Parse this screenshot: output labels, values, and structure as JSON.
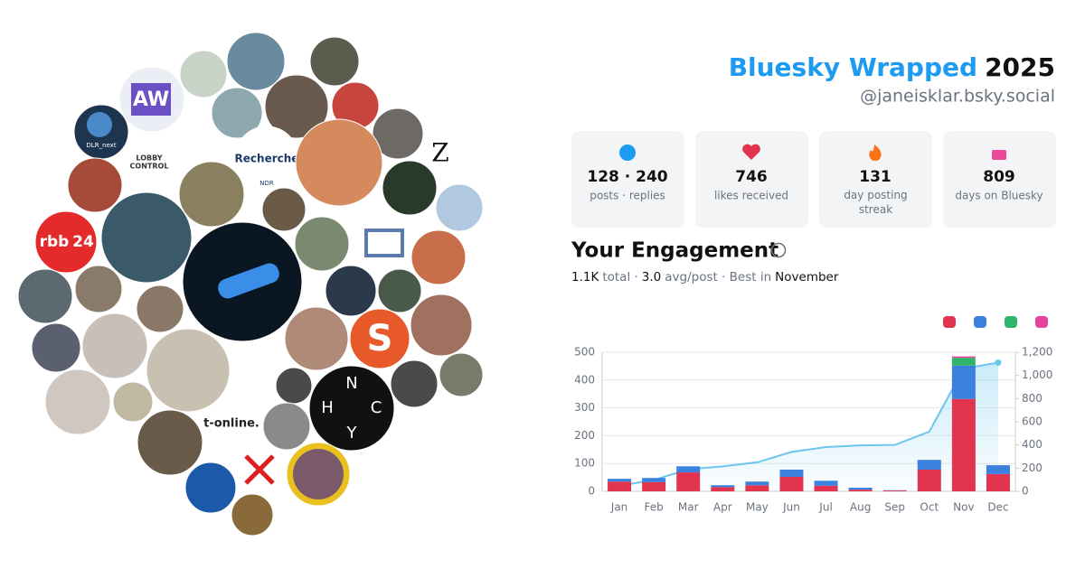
{
  "header": {
    "title": "Bluesky Wrapped",
    "year": "2025",
    "handle": "@janeisklar.bsky.social"
  },
  "avatars": [
    "AW",
    "DLR_next",
    "LOBBY",
    "CONTROL",
    "Recherche",
    "NDR",
    "Z",
    "rbb",
    "24",
    "S",
    "N",
    "H",
    "C",
    "Y",
    "t-online."
  ],
  "stats": [
    {
      "value": "128 · 240",
      "label": "posts · replies"
    },
    {
      "value": 746,
      "label": "likes received"
    },
    {
      "value": 131,
      "label": "day posting streak"
    },
    {
      "value": 809,
      "label": "days on Bluesky"
    }
  ],
  "engagement": {
    "title": "Your Engagement",
    "total": "1.1K",
    "total_label": "total ·",
    "avg": "3.0",
    "avg_label": "avg/post · Best in",
    "best": "November"
  },
  "chart_data": {
    "type": "bar",
    "categories": [
      "Jan",
      "Feb",
      "Mar",
      "Apr",
      "May",
      "Jun",
      "Jul",
      "Aug",
      "Sep",
      "Oct",
      "Nov",
      "Dec"
    ],
    "series": [
      {
        "color": "#e2334f",
        "values": [
          35,
          33,
          68,
          15,
          22,
          52,
          20,
          6,
          3,
          78,
          332,
          62
        ]
      },
      {
        "color": "#3b82e0",
        "values": [
          10,
          15,
          22,
          7,
          13,
          26,
          18,
          7,
          1,
          35,
          120,
          32
        ]
      },
      {
        "color": "#2fb56a",
        "values": [
          0,
          0,
          0,
          0,
          0,
          0,
          0,
          0,
          0,
          0,
          28,
          0
        ]
      },
      {
        "color": "#e8439c",
        "values": [
          0,
          0,
          0,
          0,
          0,
          0,
          0,
          0,
          0,
          0,
          5,
          0
        ]
      },
      {
        "type": "line",
        "axis": "y2",
        "color": "#6cc6ee",
        "values": [
          48,
          98,
          190,
          215,
          250,
          340,
          382,
          396,
          400,
          515,
          1060,
          1110
        ]
      }
    ],
    "ylim": [
      0,
      500
    ],
    "yticks": [
      0,
      100,
      200,
      300,
      400,
      500
    ],
    "y2lim": [
      0,
      1200
    ],
    "y2ticks": [
      0,
      200,
      400,
      600,
      800,
      {
        "value": 1000,
        "label": "1,000"
      },
      {
        "value": 1200,
        "label": "1,200"
      }
    ],
    "grid": true
  }
}
